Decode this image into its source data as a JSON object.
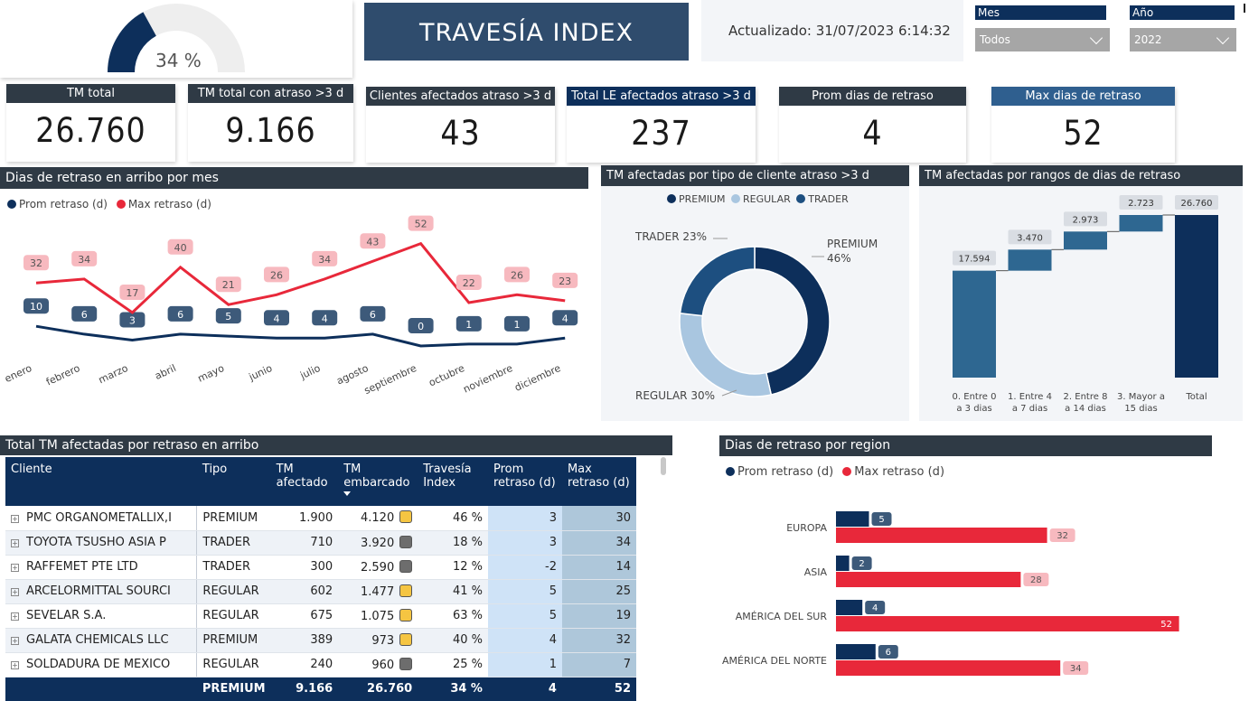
{
  "gauge": {
    "value_label": "34 %",
    "value": 0.34
  },
  "header": {
    "title": "TRAVESÍA INDEX",
    "updated": "Actualizado: 31/07/2023 6:14:32"
  },
  "filters": {
    "mes_label": "Mes",
    "mes_value": "Todos",
    "anio_label": "Año",
    "anio_value": "2022"
  },
  "kpis": [
    {
      "label": "TM total",
      "value": "26.760",
      "color": "#2f3a45"
    },
    {
      "label": "TM total con atraso >3 d",
      "value": "9.166",
      "color": "#2f3a45"
    },
    {
      "label": "Clientes afectados atraso >3 d",
      "value": "43",
      "color": "#2f3a45"
    },
    {
      "label": "Total LE afectados atraso >3 d",
      "value": "237",
      "color": "#0d2f5b"
    },
    {
      "label": "Prom dias de retraso",
      "value": "4",
      "color": "#2f3a45"
    },
    {
      "label": "Max dias de retraso",
      "value": "52",
      "color": "#2f5f8f"
    }
  ],
  "colors": {
    "navy": "#0d2f5b",
    "red": "#e8283a",
    "pink_label": "#f7b9bf",
    "steel": "#2e6791",
    "light_blue": "#a9c6e0",
    "mid_blue": "#1d4f80"
  },
  "monthly": {
    "title": "Dias de retraso en arribo por mes",
    "chart_data": {
      "type": "line",
      "categories": [
        "enero",
        "febrero",
        "marzo",
        "abril",
        "mayo",
        "junio",
        "julio",
        "agosto",
        "septiembre",
        "octubre",
        "noviembre",
        "diciembre"
      ],
      "series": [
        {
          "name": "Prom retraso (d)",
          "values": [
            10,
            6,
            3,
            6,
            5,
            4,
            4,
            6,
            0,
            1,
            1,
            4
          ]
        },
        {
          "name": "Max retraso (d)",
          "values": [
            32,
            34,
            17,
            40,
            21,
            26,
            34,
            43,
            52,
            22,
            26,
            23
          ]
        }
      ]
    }
  },
  "donut": {
    "title": "TM afectadas por tipo de cliente atraso >3 d",
    "chart_data": {
      "type": "pie",
      "legend": [
        "PREMIUM",
        "REGULAR",
        "TRADER"
      ],
      "slices": [
        {
          "name": "PREMIUM",
          "value": 46,
          "label": "PREMIUM",
          "pct": "46%"
        },
        {
          "name": "REGULAR",
          "value": 30,
          "label": "REGULAR 30%"
        },
        {
          "name": "TRADER",
          "value": 23,
          "label": "TRADER 23%"
        }
      ]
    }
  },
  "waterfall": {
    "title": "TM afectadas por rangos de dias de retraso",
    "chart_data": {
      "type": "bar",
      "categories": [
        [
          "0. Entre 0",
          "a 3 dias"
        ],
        [
          "1. Entre 4",
          "a 7 dias"
        ],
        [
          "2. Entre 8",
          "a 14 dias"
        ],
        [
          "3. Mayor a",
          "15 dias"
        ],
        [
          "Total"
        ]
      ],
      "values": [
        17594,
        3470,
        2973,
        2723,
        26760
      ],
      "labels": [
        "17.594",
        "3.470",
        "2.973",
        "2.723",
        "26.760"
      ]
    }
  },
  "table": {
    "title": "Total TM afectadas por retraso en arribo",
    "headers": [
      "Cliente",
      "Tipo",
      "TM afectado",
      "TM embarcado",
      "Travesía Index",
      "Prom retraso (d)",
      "Max retraso (d)"
    ],
    "rows": [
      {
        "cliente": "PMC ORGANOMETALLIX,I",
        "tipo": "PREMIUM",
        "tm_af": "1.900",
        "tm_emb": "4.120",
        "light": "#f5c542",
        "index": "46 %",
        "prom": "3",
        "max": "30"
      },
      {
        "cliente": "TOYOTA TSUSHO ASIA P",
        "tipo": "TRADER",
        "tm_af": "710",
        "tm_emb": "3.920",
        "light": "#6d6d6d",
        "index": "18 %",
        "prom": "3",
        "max": "34"
      },
      {
        "cliente": "RAFFEMET PTE LTD",
        "tipo": "TRADER",
        "tm_af": "300",
        "tm_emb": "2.590",
        "light": "#6d6d6d",
        "index": "12 %",
        "prom": "-2",
        "max": "14"
      },
      {
        "cliente": "ARCELORMITTAL SOURCI",
        "tipo": "REGULAR",
        "tm_af": "602",
        "tm_emb": "1.477",
        "light": "#f5c542",
        "index": "41 %",
        "prom": "5",
        "max": "25"
      },
      {
        "cliente": "SEVELAR S.A.",
        "tipo": "REGULAR",
        "tm_af": "675",
        "tm_emb": "1.075",
        "light": "#f5c542",
        "index": "63 %",
        "prom": "5",
        "max": "19"
      },
      {
        "cliente": "GALATA CHEMICALS LLC",
        "tipo": "PREMIUM",
        "tm_af": "389",
        "tm_emb": "973",
        "light": "#f5c542",
        "index": "40 %",
        "prom": "4",
        "max": "32"
      },
      {
        "cliente": "SOLDADURA DE MEXICO",
        "tipo": "REGULAR",
        "tm_af": "240",
        "tm_emb": "960",
        "light": "#6d6d6d",
        "index": "25 %",
        "prom": "1",
        "max": "7"
      }
    ],
    "total": {
      "tipo": "PREMIUM",
      "tm_af": "9.166",
      "tm_emb": "26.760",
      "index": "34 %",
      "prom": "4",
      "max": "52"
    }
  },
  "region": {
    "title": "Dias de retraso por region",
    "chart_data": {
      "type": "bar",
      "categories": [
        "EUROPA",
        "ASIA",
        "AMÉRICA DEL SUR",
        "AMÉRICA DEL NORTE"
      ],
      "series": [
        {
          "name": "Prom retraso (d)",
          "values": [
            5,
            2,
            4,
            6
          ]
        },
        {
          "name": "Max retraso (d)",
          "values": [
            32,
            28,
            52,
            34
          ]
        }
      ]
    }
  },
  "legends": {
    "prom": "Prom retraso (d)",
    "max": "Max retraso (d)"
  }
}
